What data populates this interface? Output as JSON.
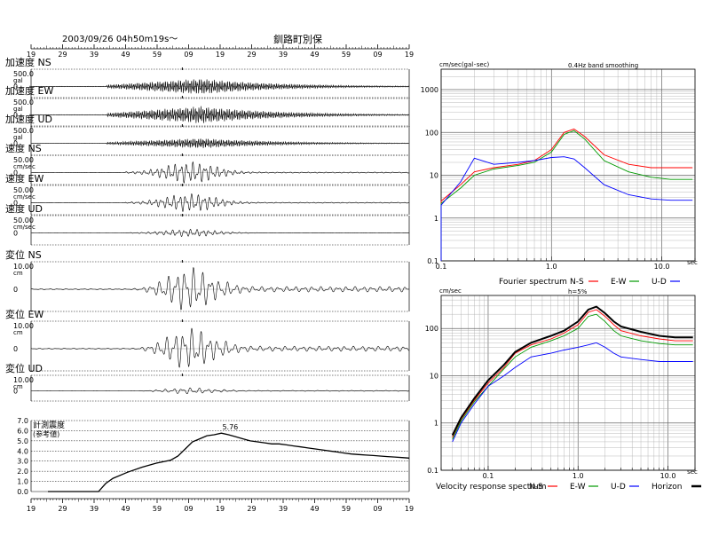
{
  "header": {
    "datetime": "2003/09/26  04h50m19s～",
    "station": "釧路町別保"
  },
  "chart_data": [
    {
      "type": "line",
      "name": "waveforms",
      "time_ticks": [
        "19",
        "29",
        "39",
        "49",
        "59",
        "09",
        "19",
        "29",
        "39",
        "49",
        "59",
        "09",
        "19"
      ],
      "traces": [
        {
          "label": "加速度 NS",
          "scale": "500.0",
          "unit": "gal",
          "zero": "0",
          "amp": 0.55,
          "env": "acc"
        },
        {
          "label": "加速度 EW",
          "scale": "500.0",
          "unit": "gal",
          "zero": "0",
          "amp": 0.6,
          "env": "acc"
        },
        {
          "label": "加速度 UD",
          "scale": "500.0",
          "unit": "gal",
          "zero": "0",
          "amp": 0.35,
          "env": "acc"
        },
        {
          "label": "速度 NS",
          "scale": "50.00",
          "unit": "cm/sec",
          "zero": "0",
          "amp": 0.7,
          "env": "vel"
        },
        {
          "label": "速度 EW",
          "scale": "50.00",
          "unit": "cm/sec",
          "zero": "0",
          "amp": 0.6,
          "env": "vel"
        },
        {
          "label": "速度 UD",
          "scale": "50.00",
          "unit": "cm/sec",
          "zero": "0",
          "amp": 0.25,
          "env": "vel"
        },
        {
          "label": "変位 NS",
          "scale": "10.00",
          "unit": "cm",
          "zero": "0",
          "amp": 0.9,
          "env": "disp"
        },
        {
          "label": "変位 EW",
          "scale": "10.00",
          "unit": "cm",
          "zero": "0",
          "amp": 0.85,
          "env": "disp"
        },
        {
          "label": "変位 UD",
          "scale": "10.00",
          "unit": "cm",
          "zero": "0",
          "amp": 0.25,
          "env": "disp"
        }
      ]
    },
    {
      "type": "line",
      "name": "intensity",
      "title": "計測震度",
      "subtitle": "(参考値)",
      "peak_label": "5.76",
      "ylim": [
        0,
        7
      ],
      "yticks": [
        "0.0",
        "1.0",
        "2.0",
        "3.0",
        "4.0",
        "5.0",
        "6.0",
        "7.0"
      ],
      "x": [
        0,
        5,
        10,
        14,
        16,
        18,
        22,
        26,
        30,
        34,
        36,
        38,
        40,
        42,
        44,
        46,
        48,
        50,
        52,
        54,
        56,
        58,
        60,
        62,
        64,
        66,
        68,
        70,
        72,
        74,
        76,
        78,
        80,
        82,
        84,
        86,
        88,
        90,
        92,
        94,
        96,
        98,
        100
      ],
      "y": [
        0,
        0,
        0,
        0,
        0.8,
        1.3,
        1.9,
        2.4,
        2.8,
        3.1,
        3.5,
        4.2,
        4.9,
        5.2,
        5.5,
        5.6,
        5.76,
        5.6,
        5.4,
        5.2,
        5.0,
        4.9,
        4.8,
        4.7,
        4.7,
        4.6,
        4.5,
        4.4,
        4.3,
        4.2,
        4.1,
        4.0,
        3.9,
        3.8,
        3.7,
        3.65,
        3.6,
        3.55,
        3.5,
        3.45,
        3.4,
        3.35,
        3.3
      ]
    },
    {
      "type": "line",
      "name": "fourier",
      "yunit": "cm/sec(gal･sec)",
      "xunit": "sec",
      "smoothing": "0.4Hz band smoothing",
      "xlim": [
        0.1,
        20
      ],
      "ylim": [
        0.1,
        3000
      ],
      "xtick_labels": [
        "0.1",
        "1.0",
        "10.0"
      ],
      "ytick_labels": [
        "0.1",
        "1",
        "10",
        "100",
        "1000"
      ],
      "legend": {
        "title": "Fourier spectrum",
        "items": [
          {
            "label": "N-S",
            "color": "#ff0000"
          },
          {
            "label": "E-W",
            "color": "#009900"
          },
          {
            "label": "U-D",
            "color": "#0000ff"
          }
        ]
      },
      "series": [
        {
          "name": "N-S",
          "color": "#ff0000",
          "x": [
            0.04,
            0.05,
            0.07,
            0.1,
            0.15,
            0.2,
            0.3,
            0.5,
            0.7,
            1.0,
            1.3,
            1.6,
            2.0,
            3.0,
            5.0,
            8.0,
            12.0,
            19.0
          ],
          "y": [
            0.15,
            0.3,
            0.8,
            2.5,
            6,
            12,
            15,
            18,
            22,
            40,
            100,
            120,
            80,
            30,
            18,
            15,
            15,
            15
          ]
        },
        {
          "name": "E-W",
          "color": "#009900",
          "x": [
            0.04,
            0.05,
            0.07,
            0.1,
            0.15,
            0.2,
            0.3,
            0.5,
            0.7,
            1.0,
            1.3,
            1.6,
            2.0,
            3.0,
            5.0,
            8.0,
            12.0,
            19.0
          ],
          "y": [
            0.12,
            0.25,
            0.7,
            2.2,
            5,
            10,
            14,
            17,
            20,
            35,
            90,
            110,
            70,
            22,
            12,
            9,
            8,
            8
          ]
        },
        {
          "name": "U-D",
          "color": "#0000ff",
          "x": [
            0.04,
            0.05,
            0.07,
            0.1,
            0.15,
            0.2,
            0.3,
            0.5,
            0.7,
            1.0,
            1.3,
            1.6,
            2.0,
            3.0,
            5.0,
            8.0,
            12.0,
            19.0
          ],
          "y": [
            0.1,
            0.2,
            0.6,
            2.0,
            7,
            25,
            18,
            20,
            22,
            26,
            27,
            24,
            15,
            6,
            3.5,
            2.8,
            2.6,
            2.6
          ]
        }
      ]
    },
    {
      "type": "line",
      "name": "velocity_response",
      "yunit": "cm/sec",
      "xunit": "sec",
      "damping": "h=5%",
      "xlim": [
        0.03,
        20
      ],
      "ylim": [
        0.1,
        500
      ],
      "xtick_labels": [
        "0.1",
        "1.0",
        "10.0"
      ],
      "ytick_labels": [
        "0.1",
        "1",
        "10",
        "100"
      ],
      "legend": {
        "title": "Velocity response spectrum",
        "items": [
          {
            "label": "N-S",
            "color": "#ff0000"
          },
          {
            "label": "E-W",
            "color": "#009900"
          },
          {
            "label": "U-D",
            "color": "#0000ff"
          },
          {
            "label": "Horizon",
            "color": "#000000"
          }
        ]
      },
      "series": [
        {
          "name": "N-S",
          "color": "#ff0000",
          "x": [
            0.04,
            0.05,
            0.07,
            0.1,
            0.15,
            0.2,
            0.3,
            0.5,
            0.7,
            1.0,
            1.3,
            1.6,
            2.0,
            2.5,
            3.0,
            5.0,
            8.0,
            12.0,
            19.0
          ],
          "y": [
            0.5,
            1.2,
            3,
            7,
            15,
            30,
            45,
            60,
            80,
            120,
            220,
            250,
            180,
            120,
            90,
            70,
            60,
            55,
            55
          ]
        },
        {
          "name": "E-W",
          "color": "#009900",
          "x": [
            0.04,
            0.05,
            0.07,
            0.1,
            0.15,
            0.2,
            0.3,
            0.5,
            0.7,
            1.0,
            1.3,
            1.6,
            2.0,
            2.5,
            3.0,
            5.0,
            8.0,
            12.0,
            19.0
          ],
          "y": [
            0.45,
            1.1,
            2.8,
            6,
            14,
            25,
            40,
            55,
            70,
            100,
            180,
            200,
            140,
            90,
            70,
            55,
            48,
            45,
            45
          ]
        },
        {
          "name": "U-D",
          "color": "#0000ff",
          "x": [
            0.04,
            0.05,
            0.07,
            0.1,
            0.15,
            0.2,
            0.3,
            0.5,
            0.7,
            1.0,
            1.3,
            1.6,
            2.0,
            2.5,
            3.0,
            5.0,
            8.0,
            12.0,
            19.0
          ],
          "y": [
            0.4,
            1.0,
            2.5,
            6,
            10,
            15,
            25,
            30,
            35,
            40,
            45,
            50,
            40,
            30,
            25,
            22,
            20,
            20,
            20
          ]
        },
        {
          "name": "Horizon",
          "color": "#000000",
          "x": [
            0.04,
            0.05,
            0.07,
            0.1,
            0.15,
            0.2,
            0.3,
            0.5,
            0.7,
            1.0,
            1.3,
            1.6,
            2.0,
            2.5,
            3.0,
            5.0,
            8.0,
            12.0,
            19.0
          ],
          "y": [
            0.55,
            1.3,
            3.3,
            8,
            17,
            32,
            50,
            70,
            90,
            140,
            250,
            290,
            210,
            140,
            110,
            85,
            70,
            65,
            65
          ]
        }
      ]
    }
  ]
}
